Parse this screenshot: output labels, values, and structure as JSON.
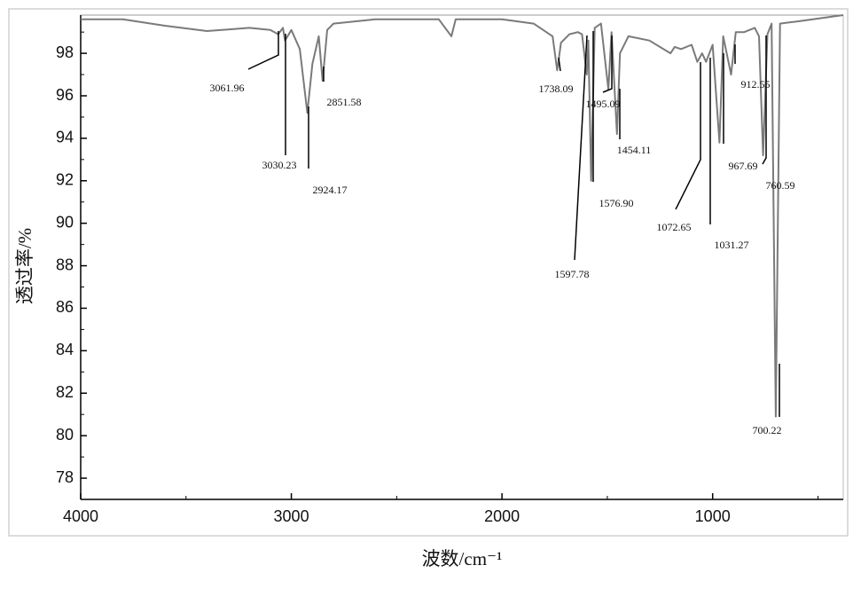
{
  "chart_data": {
    "type": "line",
    "xlabel": "波数/cm⁻¹",
    "ylabel": "透过率/%",
    "xlim": [
      4000,
      380
    ],
    "ylim": [
      77,
      99.8
    ],
    "xticks": [
      4000,
      3000,
      2000,
      1000
    ],
    "yticks": [
      78,
      80,
      82,
      84,
      86,
      88,
      90,
      92,
      94,
      96,
      98
    ],
    "series": [
      {
        "color": "#7a7a7a",
        "x": [
          4000,
          3800,
          3600,
          3400,
          3200,
          3100,
          3061.96,
          3040,
          3030.23,
          3000,
          2960,
          2924.17,
          2900,
          2870,
          2851.58,
          2830,
          2800,
          2600,
          2300,
          2240,
          2220,
          2000,
          1850,
          1760,
          1738.09,
          1720,
          1680,
          1640,
          1620,
          1597.78,
          1590,
          1576.9,
          1560,
          1530,
          1495.09,
          1480,
          1454.11,
          1440,
          1400,
          1300,
          1200,
          1180,
          1150,
          1100,
          1072.65,
          1050,
          1031.27,
          1000,
          967.69,
          950,
          912.55,
          890,
          850,
          800,
          780,
          760.59,
          740,
          720,
          700.22,
          680,
          600,
          380
        ],
        "values": [
          99.6,
          99.6,
          99.3,
          99.05,
          99.2,
          99.1,
          98.9,
          99.2,
          98.6,
          99.1,
          98.2,
          95.2,
          97.5,
          98.8,
          96.7,
          99.1,
          99.4,
          99.6,
          99.6,
          98.8,
          99.6,
          99.6,
          99.4,
          98.8,
          97.2,
          98.5,
          98.9,
          99.0,
          98.9,
          97.0,
          98.6,
          92.0,
          99.2,
          99.4,
          96.3,
          99.0,
          94.2,
          98.0,
          98.8,
          98.6,
          98.0,
          98.3,
          98.2,
          98.4,
          97.6,
          98.0,
          97.6,
          98.4,
          93.8,
          98.8,
          97.0,
          99.0,
          99.0,
          99.2,
          98.8,
          93.2,
          98.9,
          99.4,
          80.9,
          99.4,
          99.5,
          99.8
        ]
      }
    ],
    "annotations": [
      {
        "x": 3061.96,
        "label": "3061.96"
      },
      {
        "x": 3030.23,
        "label": "3030.23"
      },
      {
        "x": 2924.17,
        "label": "2924.17"
      },
      {
        "x": 2851.58,
        "label": "2851.58"
      },
      {
        "x": 1738.09,
        "label": "1738.09"
      },
      {
        "x": 1495.09,
        "label": "1495.09"
      },
      {
        "x": 1454.11,
        "label": "1454.11"
      },
      {
        "x": 1597.78,
        "label": "1597.78"
      },
      {
        "x": 1576.9,
        "label": "1576.90"
      },
      {
        "x": 1072.65,
        "label": "1072.65"
      },
      {
        "x": 1031.27,
        "label": "1031.27"
      },
      {
        "x": 967.69,
        "label": "967.69"
      },
      {
        "x": 912.55,
        "label": "912.55"
      },
      {
        "x": 760.59,
        "label": "760.59"
      },
      {
        "x": 700.22,
        "label": "700.22"
      }
    ]
  }
}
